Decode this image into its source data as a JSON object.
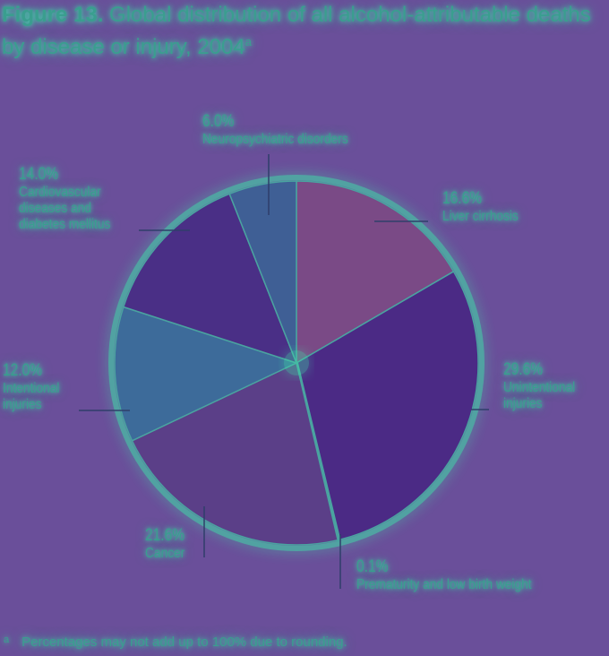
{
  "title": {
    "figure": "Figure 13.",
    "text": "Global distribution of all alcohol-attributable deaths by disease or injury, 2004",
    "superscript": "a"
  },
  "footnote": {
    "mark": "a",
    "text": "Percentages may not add up to 100% due to rounding."
  },
  "colors": {
    "background": "#6a4f9a",
    "text": "#3a9e8f",
    "glow": "#3ce6aa"
  },
  "chart_data": {
    "type": "pie",
    "start_angle_deg": 0,
    "direction": "clockwise",
    "slices": [
      {
        "pct": "16.6%",
        "value": 16.6,
        "label_lines": [
          "Liver cirrhosis"
        ],
        "color": "#7a4a86"
      },
      {
        "pct": "29.6%",
        "value": 29.6,
        "label_lines": [
          "Unintentional",
          "injuries"
        ],
        "color": "#4b2a85"
      },
      {
        "pct": "0.1%",
        "value": 0.1,
        "label_lines": [
          "Prematurity and low birth weight"
        ],
        "color": "#3fae96"
      },
      {
        "pct": "21.6%",
        "value": 21.6,
        "label_lines": [
          "Cancer"
        ],
        "color": "#5b3f88"
      },
      {
        "pct": "12.0%",
        "value": 12.0,
        "label_lines": [
          "Intentional",
          "injuries"
        ],
        "color": "#3d6b9a"
      },
      {
        "pct": "14.0%",
        "value": 14.0,
        "label_lines": [
          "Cardiovascular",
          "diseases and",
          "diabetes mellitus"
        ],
        "color": "#4a2f86"
      },
      {
        "pct": "6.0%",
        "value": 6.0,
        "label_lines": [
          "Neuropsychiatric disorders"
        ],
        "color": "#3f5f95"
      }
    ]
  }
}
